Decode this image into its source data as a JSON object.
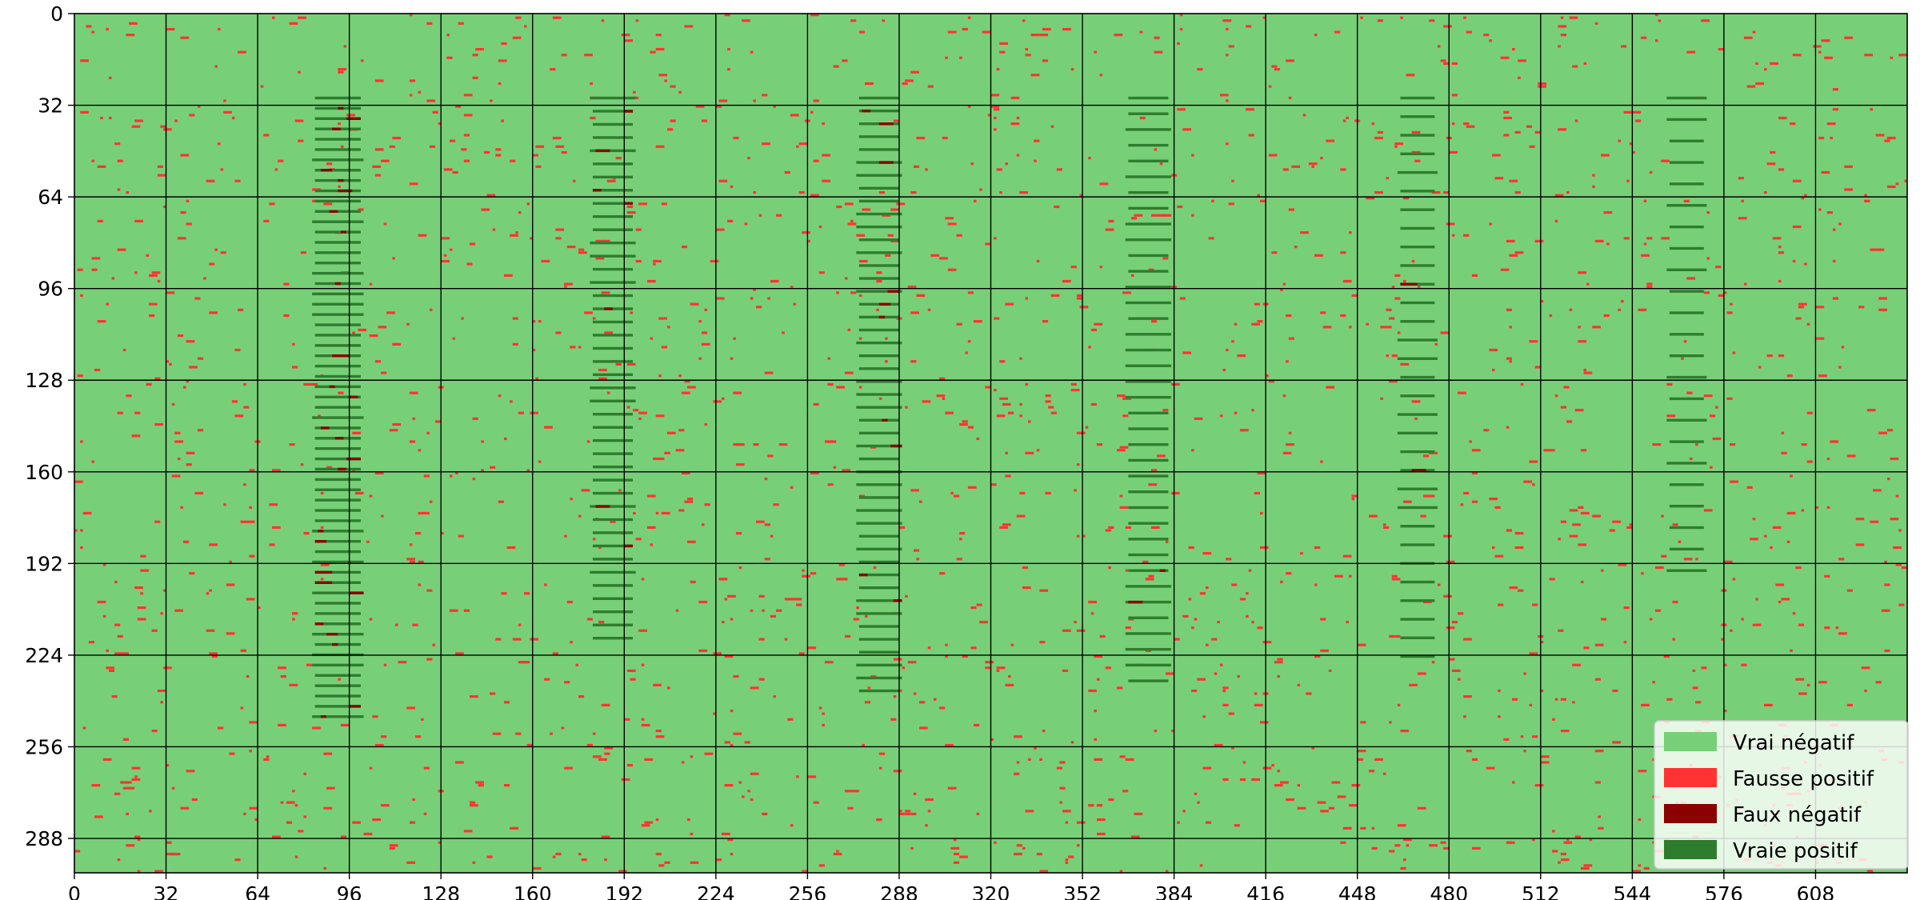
{
  "chart_data": {
    "type": "heatmap",
    "title": "",
    "xlabel": "",
    "ylabel": "",
    "xlim": [
      0,
      640
    ],
    "ylim": [
      0,
      300
    ],
    "y_inverted": true,
    "grid": true,
    "grid_step": 32,
    "xticks": [
      "0",
      "32",
      "64",
      "96",
      "128",
      "160",
      "192",
      "224",
      "256",
      "288",
      "320",
      "352",
      "384",
      "416",
      "448",
      "480",
      "512",
      "544",
      "576",
      "608"
    ],
    "yticks": [
      "0",
      "32",
      "64",
      "96",
      "128",
      "160",
      "192",
      "224",
      "256",
      "288"
    ],
    "legend": {
      "placement": "lower-right",
      "entries": [
        {
          "label": "Vrai négatif",
          "color": "#77d077"
        },
        {
          "label": "Fausse positif",
          "color": "#ff3333"
        },
        {
          "label": "Faux négatif",
          "color": "#8b0000"
        },
        {
          "label": "Vraie positif",
          "color": "#2e7d2e"
        }
      ]
    },
    "background_class": "Vrai négatif",
    "false_positive_density": 0.03,
    "columns": [
      {
        "x_center": 92,
        "y_start": 29,
        "y_end": 245,
        "row_step": 3.6,
        "half_width": 8,
        "fn_fraction": 0.45
      },
      {
        "x_center": 188,
        "y_start": 29,
        "y_end": 219,
        "row_step": 4.6,
        "half_width": 7,
        "fn_fraction": 0.22
      },
      {
        "x_center": 281,
        "y_start": 29,
        "y_end": 236,
        "row_step": 4.5,
        "half_width": 7,
        "fn_fraction": 0.18
      },
      {
        "x_center": 375,
        "y_start": 29,
        "y_end": 234,
        "row_step": 5.5,
        "half_width": 7,
        "fn_fraction": 0.12
      },
      {
        "x_center": 469,
        "y_start": 29,
        "y_end": 224,
        "row_step": 6.5,
        "half_width": 6,
        "fn_fraction": 0.1
      },
      {
        "x_center": 563,
        "y_start": 29,
        "y_end": 195,
        "row_step": 7.5,
        "half_width": 6,
        "fn_fraction": 0.12
      }
    ]
  }
}
